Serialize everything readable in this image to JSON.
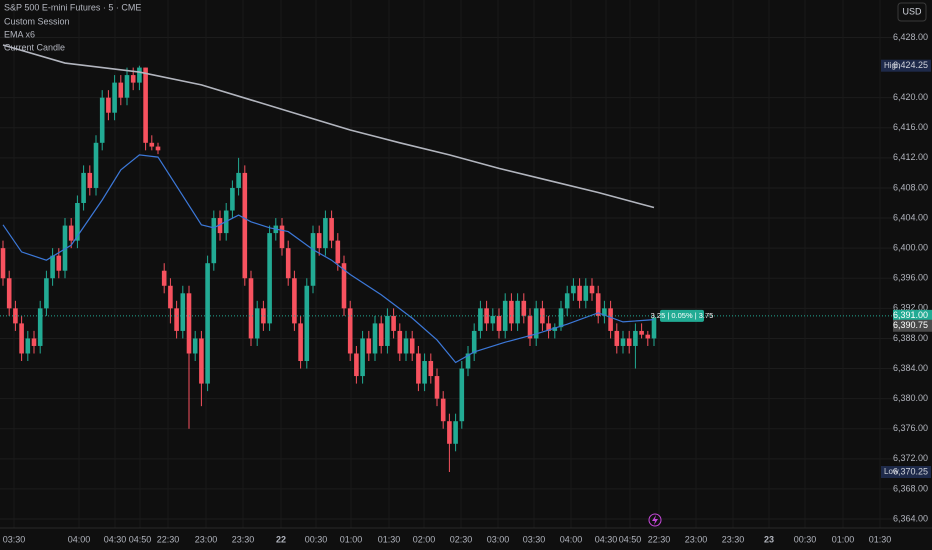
{
  "chart_data": {
    "type": "candlestick",
    "title": "S&P 500 E-mini Futures · 5 · CME",
    "legend_items": [
      "Custom Session",
      "EMA x6",
      "Current Candle"
    ],
    "currency": "USD",
    "up_color": "#22ab94",
    "down_color": "#f7525f",
    "grid": true,
    "ohlc": [
      [
        6400,
        6401,
        6395,
        6396
      ],
      [
        6396,
        6397,
        6391,
        6392
      ],
      [
        6392,
        6393,
        6389,
        6390
      ],
      [
        6390,
        6391,
        6385,
        6386
      ],
      [
        6386,
        6389,
        6385,
        6388
      ],
      [
        6388,
        6389,
        6386,
        6387
      ],
      [
        6387,
        6393,
        6386,
        6392
      ],
      [
        6392,
        6397,
        6391,
        6396
      ],
      [
        6396,
        6400,
        6395,
        6399
      ],
      [
        6399,
        6400,
        6396,
        6397
      ],
      [
        6397,
        6404,
        6396,
        6403
      ],
      [
        6403,
        6404,
        6400,
        6401
      ],
      [
        6401,
        6407,
        6400,
        6406
      ],
      [
        6406,
        6411,
        6405,
        6410
      ],
      [
        6410,
        6411,
        6407,
        6408
      ],
      [
        6408,
        6415,
        6407,
        6414
      ],
      [
        6414,
        6421,
        6413,
        6420
      ],
      [
        6420,
        6421,
        6417,
        6418
      ],
      [
        6418,
        6423,
        6417,
        6422
      ],
      [
        6422,
        6423,
        6419,
        6420
      ],
      [
        6420,
        6424,
        6419,
        6423
      ],
      [
        6423,
        6424,
        6421,
        6422
      ],
      [
        6422,
        6424.25,
        6421,
        6424
      ],
      [
        6424,
        6424,
        6413,
        6414
      ],
      [
        6414,
        6415,
        6413,
        6413.5
      ],
      [
        6413.5,
        6414,
        6412.5,
        6413
      ],
      [
        6397,
        6398,
        6394,
        6395
      ],
      [
        6395,
        6396,
        6390,
        6392
      ],
      [
        6392,
        6393,
        6388,
        6389
      ],
      [
        6389,
        6395,
        6388,
        6394
      ],
      [
        6394,
        6395,
        6376,
        6386
      ],
      [
        6386,
        6389,
        6385,
        6388
      ],
      [
        6388,
        6389,
        6379,
        6382
      ],
      [
        6382,
        6399,
        6381,
        6398
      ],
      [
        6398,
        6405,
        6397,
        6404
      ],
      [
        6404,
        6405,
        6401,
        6402
      ],
      [
        6402,
        6406,
        6401,
        6405
      ],
      [
        6405,
        6409,
        6404,
        6408
      ],
      [
        6408,
        6412,
        6407,
        6410
      ],
      [
        6410,
        6411,
        6395,
        6396
      ],
      [
        6396,
        6397,
        6387,
        6388
      ],
      [
        6388,
        6393,
        6387,
        6392
      ],
      [
        6392,
        6393,
        6389,
        6390
      ],
      [
        6390,
        6403,
        6389,
        6402
      ],
      [
        6402,
        6404,
        6401,
        6403
      ],
      [
        6403,
        6404,
        6399,
        6400
      ],
      [
        6400,
        6401,
        6395,
        6396
      ],
      [
        6396,
        6397,
        6389,
        6390
      ],
      [
        6390,
        6391,
        6384,
        6385
      ],
      [
        6385,
        6396,
        6384,
        6395
      ],
      [
        6395,
        6403,
        6394,
        6402
      ],
      [
        6402,
        6403,
        6399,
        6400
      ],
      [
        6400,
        6405,
        6399,
        6404
      ],
      [
        6404,
        6405,
        6400,
        6401
      ],
      [
        6401,
        6402,
        6397,
        6398
      ],
      [
        6398,
        6399,
        6391,
        6392
      ],
      [
        6392,
        6393,
        6385,
        6386
      ],
      [
        6386,
        6387,
        6382,
        6383
      ],
      [
        6383,
        6389,
        6382,
        6388
      ],
      [
        6388,
        6389,
        6385,
        6386
      ],
      [
        6386,
        6391,
        6385,
        6390
      ],
      [
        6390,
        6391,
        6386,
        6387
      ],
      [
        6387,
        6392,
        6386,
        6391
      ],
      [
        6391,
        6392,
        6388,
        6389
      ],
      [
        6389,
        6390,
        6385,
        6386
      ],
      [
        6386,
        6389,
        6385,
        6388
      ],
      [
        6388,
        6389,
        6385,
        6386
      ],
      [
        6386,
        6387,
        6381,
        6382
      ],
      [
        6382,
        6386,
        6381,
        6385
      ],
      [
        6385,
        6386,
        6382,
        6383
      ],
      [
        6383,
        6384,
        6379,
        6380
      ],
      [
        6380,
        6381,
        6376,
        6377
      ],
      [
        6377,
        6378,
        6370.25,
        6374
      ],
      [
        6374,
        6378,
        6373,
        6377
      ],
      [
        6377,
        6385,
        6376,
        6384
      ],
      [
        6384,
        6387,
        6383,
        6386
      ],
      [
        6386,
        6390,
        6385,
        6389
      ],
      [
        6389,
        6393,
        6388,
        6392
      ],
      [
        6392,
        6393,
        6389,
        6390
      ],
      [
        6390,
        6392,
        6389,
        6391
      ],
      [
        6391,
        6392,
        6388,
        6389
      ],
      [
        6389,
        6394,
        6388,
        6393
      ],
      [
        6393,
        6394,
        6389,
        6390
      ],
      [
        6390,
        6394,
        6389,
        6393
      ],
      [
        6393,
        6394,
        6390,
        6391
      ],
      [
        6391,
        6392,
        6387,
        6388
      ],
      [
        6388,
        6393,
        6387,
        6392
      ],
      [
        6392,
        6393,
        6389,
        6390
      ],
      [
        6390,
        6391,
        6388,
        6389
      ],
      [
        6389,
        6390,
        6388,
        6389.5
      ],
      [
        6389.5,
        6393,
        6389,
        6392
      ],
      [
        6392,
        6395,
        6391,
        6394
      ],
      [
        6394,
        6396,
        6393,
        6395
      ],
      [
        6395,
        6396,
        6392,
        6393
      ],
      [
        6393,
        6396,
        6392,
        6395
      ],
      [
        6395,
        6396,
        6393,
        6394
      ],
      [
        6394,
        6395,
        6390,
        6391
      ],
      [
        6391,
        6393,
        6390,
        6392
      ],
      [
        6392,
        6393,
        6388,
        6389
      ],
      [
        6389,
        6390,
        6386,
        6387
      ],
      [
        6387,
        6389,
        6386,
        6388
      ],
      [
        6388,
        6389,
        6386,
        6387
      ],
      [
        6387,
        6390,
        6384,
        6389
      ],
      [
        6389,
        6390,
        6388,
        6388.5
      ],
      [
        6388.5,
        6389,
        6387,
        6388
      ],
      [
        6388,
        6391,
        6387,
        6390.75
      ]
    ],
    "lines": [
      {
        "color": "#b2b5be",
        "x": [
          0,
          10,
          22,
          32,
          40,
          48,
          56,
          64,
          72,
          80,
          88,
          96,
          105
        ],
        "values": [
          6427,
          6424.6,
          6423.4,
          6421.7,
          6419.7,
          6417.7,
          6415.7,
          6414,
          6412.4,
          6410.6,
          6409,
          6407.4,
          6405.4
        ]
      },
      {
        "color": "#3c78d8",
        "x": [
          0,
          3,
          7,
          11,
          16,
          19,
          22,
          25,
          32,
          34,
          38,
          40,
          43,
          46,
          50,
          53,
          56,
          61,
          66,
          70,
          73,
          76,
          81,
          86,
          91,
          96,
          100,
          105
        ],
        "values": [
          6403.1,
          6399.5,
          6398.4,
          6400.4,
          6406.4,
          6410.4,
          6412.4,
          6412.1,
          6403.1,
          6402.7,
          6404.4,
          6403.5,
          6402.7,
          6402.2,
          6399.8,
          6398.4,
          6396.5,
          6393.8,
          6390.7,
          6387.8,
          6384.8,
          6386.2,
          6387.5,
          6388.6,
          6389.9,
          6391.4,
          6390.2,
          6390.5
        ]
      }
    ],
    "ylim": [
      6362.94,
      6432.98
    ],
    "yticks": [
      {
        "value": 6364,
        "label": "6,364.00"
      },
      {
        "value": 6368,
        "label": "6,368.00"
      },
      {
        "value": 6372,
        "label": "6,372.00"
      },
      {
        "value": 6376,
        "label": "6,376.00"
      },
      {
        "value": 6380,
        "label": "6,380.00"
      },
      {
        "value": 6384,
        "label": "6,384.00"
      },
      {
        "value": 6388,
        "label": "6,388.00"
      },
      {
        "value": 6392,
        "label": "6,392.00"
      },
      {
        "value": 6396,
        "label": "6,396.00"
      },
      {
        "value": 6400,
        "label": "6,400.00"
      },
      {
        "value": 6404,
        "label": "6,404.00"
      },
      {
        "value": 6408,
        "label": "6,408.00"
      },
      {
        "value": 6412,
        "label": "6,412.00"
      },
      {
        "value": 6416,
        "label": "6,416.00"
      },
      {
        "value": 6420,
        "label": "6,420.00"
      },
      {
        "value": 6428,
        "label": "6,428.00"
      }
    ],
    "x_labels": [
      "03:30",
      "04:00",
      "04:30",
      "04:50",
      "22:30",
      "23:00",
      "23:30",
      "22",
      "00:30",
      "01:00",
      "01:30",
      "02:00",
      "02:30",
      "03:00",
      "03:30",
      "04:00",
      "04:30",
      "04:50",
      "22:30",
      "23:00",
      "23:30",
      "23",
      "00:30",
      "01:00",
      "01:30"
    ],
    "markers": [
      {
        "name": "High",
        "value": {
          "value": 6424.25,
          "label": "6,424.25"
        }
      },
      {
        "name": "Low",
        "value": {
          "value": 6370.25,
          "label": "6,370.25"
        }
      }
    ],
    "last_price": {
      "value": 6391,
      "label": "6,391.00"
    },
    "current": {
      "value": 6390.75,
      "label": "6,390.75"
    },
    "change_label": "3.25 | 0.05% | 3.75"
  }
}
